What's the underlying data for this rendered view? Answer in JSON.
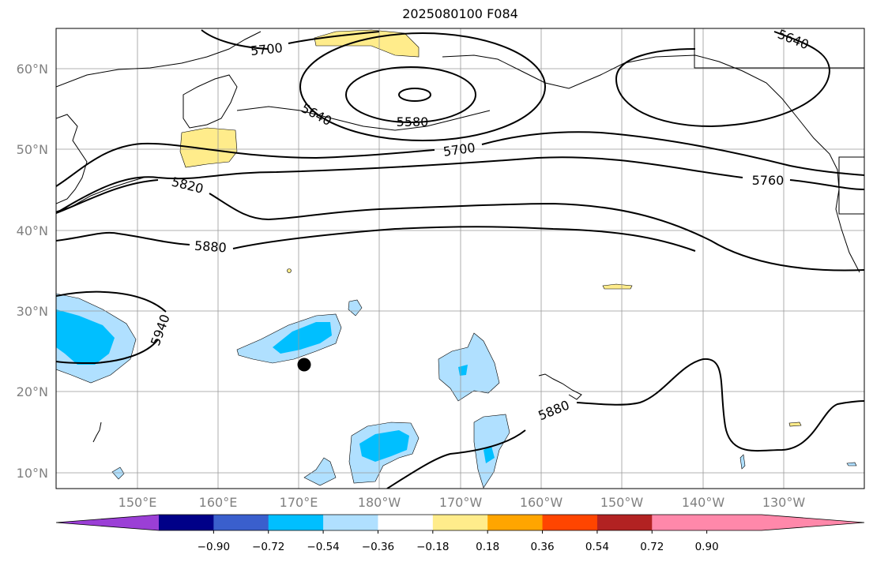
{
  "title": "2025080100 F084",
  "map": {
    "lat_labels": [
      "60°N",
      "50°N",
      "40°N",
      "30°N",
      "20°N",
      "10°N"
    ],
    "lon_labels": [
      "150°E",
      "160°E",
      "170°E",
      "180°W",
      "170°W",
      "160°W",
      "150°W",
      "140°W",
      "130°W"
    ],
    "contour_labels": [
      "5700",
      "5640",
      "5580",
      "5700",
      "5640",
      "5760",
      "5820",
      "5880",
      "5940",
      "5880"
    ],
    "marker": "black-dot"
  },
  "colorbar": {
    "ticks": [
      "−0.90",
      "−0.72",
      "−0.54",
      "−0.36",
      "−0.18",
      "0.18",
      "0.36",
      "0.54",
      "0.72",
      "0.90"
    ],
    "colors": [
      "#9b3fd6",
      "#000088",
      "#3a5fcd",
      "#00bfff",
      "#b0e0ff",
      "#ffffff",
      "#ffec8b",
      "#ffa500",
      "#ff4500",
      "#b22222",
      "#ff88aa",
      "#ff88aa"
    ]
  },
  "colors": {
    "negative_light": "#b0e0ff",
    "negative_mid": "#00bfff",
    "positive_light": "#ffec8b",
    "grid": "#999999",
    "contour": "#000000"
  }
}
